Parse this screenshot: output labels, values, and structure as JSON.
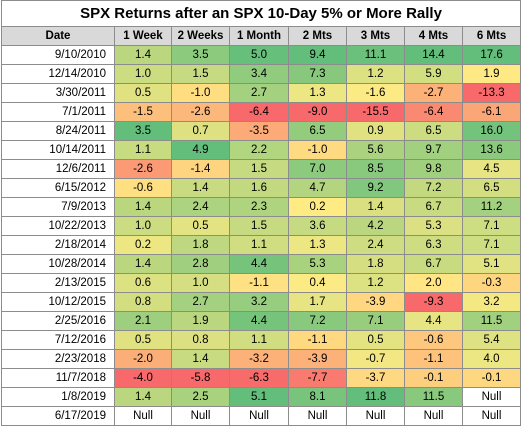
{
  "title": "SPX Returns after an SPX 10-Day 5% or More Rally",
  "headers": [
    "Date",
    "1 Week",
    "2 Weeks",
    "1 Month",
    "2 Mts",
    "3 Mts",
    "4 Mts",
    "6 Mts"
  ],
  "rows": [
    [
      "9/10/2010",
      "1.4",
      "3.5",
      "5.0",
      "9.4",
      "11.1",
      "14.4",
      "17.6"
    ],
    [
      "12/14/2010",
      "1.0",
      "1.5",
      "3.4",
      "7.3",
      "1.2",
      "5.9",
      "1.9"
    ],
    [
      "3/30/2011",
      "0.5",
      "-1.0",
      "2.7",
      "1.3",
      "-1.6",
      "-2.7",
      "-13.3"
    ],
    [
      "7/1/2011",
      "-1.5",
      "-2.6",
      "-6.4",
      "-9.0",
      "-15.5",
      "-6.4",
      "-6.1"
    ],
    [
      "8/24/2011",
      "3.5",
      "0.7",
      "-3.5",
      "6.5",
      "0.9",
      "6.5",
      "16.0"
    ],
    [
      "10/14/2011",
      "1.1",
      "4.9",
      "2.2",
      "-1.0",
      "5.6",
      "9.7",
      "13.6"
    ],
    [
      "12/6/2011",
      "-2.6",
      "-1.4",
      "1.5",
      "7.0",
      "8.5",
      "9.8",
      "4.5"
    ],
    [
      "6/15/2012",
      "-0.6",
      "1.4",
      "1.6",
      "4.7",
      "9.2",
      "7.2",
      "6.5"
    ],
    [
      "7/9/2013",
      "1.4",
      "2.4",
      "2.3",
      "0.2",
      "1.4",
      "6.7",
      "11.2"
    ],
    [
      "10/22/2013",
      "1.0",
      "0.5",
      "1.5",
      "3.6",
      "4.2",
      "5.3",
      "7.1"
    ],
    [
      "2/18/2014",
      "0.2",
      "1.8",
      "1.1",
      "1.3",
      "2.4",
      "6.3",
      "7.1"
    ],
    [
      "10/28/2014",
      "1.4",
      "2.8",
      "4.4",
      "5.3",
      "1.8",
      "6.7",
      "5.1"
    ],
    [
      "2/13/2015",
      "0.6",
      "1.0",
      "-1.1",
      "0.4",
      "1.2",
      "2.0",
      "-0.3"
    ],
    [
      "10/12/2015",
      "0.8",
      "2.7",
      "3.2",
      "1.7",
      "-3.9",
      "-9.3",
      "3.2"
    ],
    [
      "2/25/2016",
      "2.1",
      "1.9",
      "4.4",
      "7.2",
      "7.1",
      "4.4",
      "11.5"
    ],
    [
      "7/12/2016",
      "0.5",
      "0.8",
      "1.1",
      "-1.1",
      "0.5",
      "-0.6",
      "5.4"
    ],
    [
      "2/23/2018",
      "-2.0",
      "1.4",
      "-3.2",
      "-3.9",
      "-0.7",
      "-1.1",
      "4.0"
    ],
    [
      "11/7/2018",
      "-4.0",
      "-5.8",
      "-6.3",
      "-7.7",
      "-3.7",
      "-0.1",
      "-0.1"
    ],
    [
      "1/8/2019",
      "1.4",
      "2.5",
      "5.1",
      "8.1",
      "11.8",
      "11.5",
      "Null"
    ],
    [
      "6/17/2019",
      "Null",
      "Null",
      "Null",
      "Null",
      "Null",
      "Null",
      "Null"
    ]
  ],
  "colors": {
    "negative_strong": "#f8696b",
    "neutral": "#ffeb84",
    "positive_strong": "#63be7b",
    "header_bg": "#d9d9d9",
    "grid": "#8c8c8c"
  },
  "chart_data": {
    "type": "table",
    "title": "SPX Returns after an SPX 10-Day 5% or More Rally",
    "columns": [
      "Date",
      "1 Week",
      "2 Weeks",
      "1 Month",
      "2 Mts",
      "3 Mts",
      "4 Mts",
      "6 Mts"
    ],
    "color_scale": "red-yellow-green per column"
  }
}
